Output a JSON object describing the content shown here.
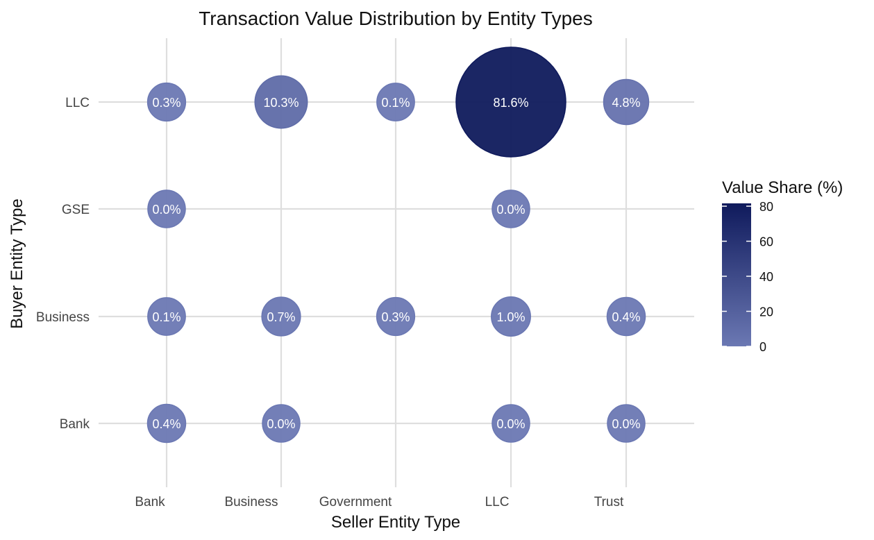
{
  "chart_data": {
    "type": "scatter",
    "title": "Transaction Value Distribution by Entity Types",
    "xlabel": "Seller Entity Type",
    "ylabel": "Buyer Entity Type",
    "x_categories": [
      "Bank",
      "Business",
      "Government",
      "LLC",
      "Trust"
    ],
    "y_categories": [
      "Bank",
      "Business",
      "GSE",
      "LLC"
    ],
    "points": [
      {
        "seller": "Bank",
        "buyer": "LLC",
        "value": 0.3,
        "label": "0.3%"
      },
      {
        "seller": "Business",
        "buyer": "LLC",
        "value": 10.3,
        "label": "10.3%"
      },
      {
        "seller": "Government",
        "buyer": "LLC",
        "value": 0.1,
        "label": "0.1%"
      },
      {
        "seller": "LLC",
        "buyer": "LLC",
        "value": 81.6,
        "label": "81.6%"
      },
      {
        "seller": "Trust",
        "buyer": "LLC",
        "value": 4.8,
        "label": "4.8%"
      },
      {
        "seller": "Bank",
        "buyer": "GSE",
        "value": 0.0,
        "label": "0.0%"
      },
      {
        "seller": "LLC",
        "buyer": "GSE",
        "value": 0.0,
        "label": "0.0%"
      },
      {
        "seller": "Bank",
        "buyer": "Business",
        "value": 0.1,
        "label": "0.1%"
      },
      {
        "seller": "Business",
        "buyer": "Business",
        "value": 0.7,
        "label": "0.7%"
      },
      {
        "seller": "Government",
        "buyer": "Business",
        "value": 0.3,
        "label": "0.3%"
      },
      {
        "seller": "LLC",
        "buyer": "Business",
        "value": 1.0,
        "label": "1.0%"
      },
      {
        "seller": "Trust",
        "buyer": "Business",
        "value": 0.4,
        "label": "0.4%"
      },
      {
        "seller": "Bank",
        "buyer": "Bank",
        "value": 0.4,
        "label": "0.4%"
      },
      {
        "seller": "Business",
        "buyer": "Bank",
        "value": 0.0,
        "label": "0.0%"
      },
      {
        "seller": "LLC",
        "buyer": "Bank",
        "value": 0.0,
        "label": "0.0%"
      },
      {
        "seller": "Trust",
        "buyer": "Bank",
        "value": 0.0,
        "label": "0.0%"
      }
    ],
    "legend": {
      "title": "Value Share (%)",
      "ticks": [
        0,
        20,
        40,
        60,
        80
      ],
      "range": [
        0,
        81.6
      ],
      "color_low": "#6b78b3",
      "color_high": "#0f1a5c",
      "placement": "right"
    },
    "grid": true
  }
}
